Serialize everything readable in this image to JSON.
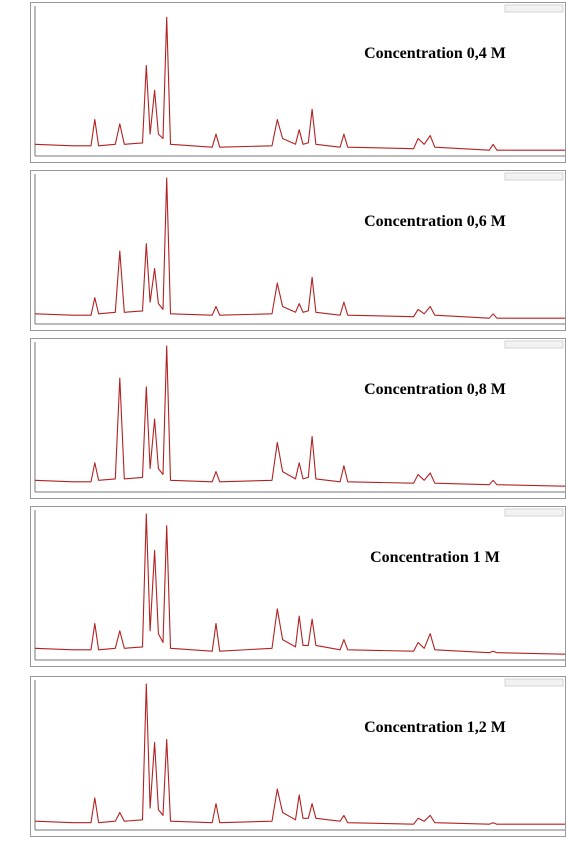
{
  "chart_data": [
    {
      "type": "line",
      "title": "Concentration 0,4 M",
      "color": "#b22222",
      "xlim": [
        10,
        80
      ],
      "ylim": [
        0,
        100
      ],
      "x": [
        10,
        15,
        17.4,
        17.9,
        18.4,
        20.6,
        21.2,
        21.8,
        24.2,
        24.7,
        25.2,
        25.8,
        26.3,
        26.9,
        27.4,
        27.9,
        33.4,
        33.9,
        34.4,
        41.3,
        42,
        42.7,
        44.4,
        44.9,
        45.4,
        46.1,
        46.6,
        47.1,
        50.3,
        50.8,
        51.3,
        60,
        60.6,
        61.4,
        62.2,
        62.8,
        70,
        70.5,
        71,
        80
      ],
      "values": [
        8,
        7,
        7,
        25,
        7,
        8,
        22,
        8,
        9,
        62,
        15,
        45,
        15,
        12,
        95,
        8,
        6,
        15,
        6,
        7,
        25,
        12,
        8,
        18,
        8,
        9,
        32,
        8,
        6,
        15,
        6,
        5,
        12,
        8,
        14,
        6,
        4,
        8,
        4,
        4
      ]
    },
    {
      "type": "line",
      "title": "Concentration 0,6 M",
      "color": "#b22222",
      "xlim": [
        10,
        80
      ],
      "ylim": [
        0,
        100
      ],
      "x": [
        10,
        15,
        17.4,
        17.9,
        18.4,
        20.6,
        21.2,
        21.8,
        24.2,
        24.7,
        25.2,
        25.8,
        26.3,
        26.9,
        27.4,
        27.9,
        33.4,
        33.9,
        34.4,
        41.3,
        42,
        42.7,
        44.4,
        44.9,
        45.4,
        46.1,
        46.6,
        47.1,
        50.3,
        50.8,
        51.3,
        60,
        60.6,
        61.4,
        62.2,
        62.8,
        70,
        70.5,
        71,
        80
      ],
      "values": [
        7,
        6,
        6,
        18,
        7,
        8,
        50,
        8,
        9,
        55,
        15,
        38,
        14,
        10,
        100,
        7,
        6,
        12,
        6,
        7,
        28,
        12,
        8,
        14,
        8,
        9,
        32,
        8,
        6,
        15,
        6,
        5,
        10,
        7,
        12,
        6,
        4,
        7,
        4,
        4
      ]
    },
    {
      "type": "line",
      "title": "Concentration 0,8 M",
      "color": "#b22222",
      "xlim": [
        10,
        80
      ],
      "ylim": [
        0,
        100
      ],
      "x": [
        10,
        15,
        17.4,
        17.9,
        18.4,
        20.6,
        21.2,
        21.8,
        24.2,
        24.7,
        25.2,
        25.8,
        26.3,
        26.9,
        27.4,
        27.9,
        33.4,
        33.9,
        34.4,
        41.3,
        42,
        42.7,
        44.4,
        44.9,
        45.4,
        46.1,
        46.6,
        47.1,
        50.3,
        50.8,
        51.3,
        60,
        60.6,
        61.4,
        62.2,
        62.8,
        70,
        70.5,
        71,
        80
      ],
      "values": [
        8,
        7,
        7,
        20,
        8,
        9,
        78,
        9,
        10,
        72,
        16,
        50,
        16,
        12,
        100,
        8,
        7,
        14,
        7,
        8,
        34,
        14,
        9,
        20,
        9,
        10,
        38,
        9,
        7,
        18,
        7,
        6,
        12,
        8,
        13,
        6,
        5,
        8,
        5,
        4
      ]
    },
    {
      "type": "line",
      "title": "Concentration 1 M",
      "color": "#b22222",
      "xlim": [
        10,
        80
      ],
      "ylim": [
        0,
        100
      ],
      "x": [
        10,
        15,
        17.4,
        17.9,
        18.4,
        20.6,
        21.2,
        21.8,
        24.2,
        24.7,
        25.2,
        25.8,
        26.3,
        26.9,
        27.4,
        27.9,
        33.4,
        33.9,
        34.4,
        41.3,
        42,
        42.7,
        44.4,
        44.9,
        45.4,
        46.1,
        46.6,
        47.1,
        50.3,
        50.8,
        51.3,
        60,
        60.6,
        61.4,
        62.2,
        62.8,
        70,
        70.5,
        71,
        80
      ],
      "values": [
        8,
        7,
        7,
        25,
        7,
        8,
        20,
        8,
        9,
        100,
        20,
        75,
        18,
        12,
        92,
        8,
        6,
        25,
        6,
        8,
        35,
        14,
        9,
        30,
        10,
        10,
        28,
        10,
        7,
        14,
        7,
        6,
        12,
        8,
        18,
        7,
        5,
        6,
        5,
        4
      ]
    },
    {
      "type": "line",
      "title": "Concentration 1,2 M",
      "color": "#b22222",
      "xlim": [
        10,
        80
      ],
      "ylim": [
        0,
        100
      ],
      "x": [
        10,
        15,
        17.4,
        17.9,
        18.4,
        20.6,
        21.2,
        21.8,
        24.2,
        24.7,
        25.2,
        25.8,
        26.3,
        26.9,
        27.4,
        27.9,
        33.4,
        33.9,
        34.4,
        41.3,
        42,
        42.7,
        44.4,
        44.9,
        45.4,
        46.1,
        46.6,
        47.1,
        50.3,
        50.8,
        51.3,
        60,
        60.6,
        61.4,
        62.2,
        62.8,
        70,
        70.5,
        71,
        80
      ],
      "values": [
        6,
        5,
        5,
        22,
        5,
        6,
        12,
        6,
        7,
        100,
        15,
        60,
        14,
        10,
        62,
        6,
        5,
        18,
        5,
        6,
        28,
        12,
        7,
        24,
        8,
        8,
        18,
        8,
        6,
        10,
        5,
        4,
        8,
        6,
        10,
        5,
        4,
        5,
        4,
        4
      ]
    }
  ]
}
